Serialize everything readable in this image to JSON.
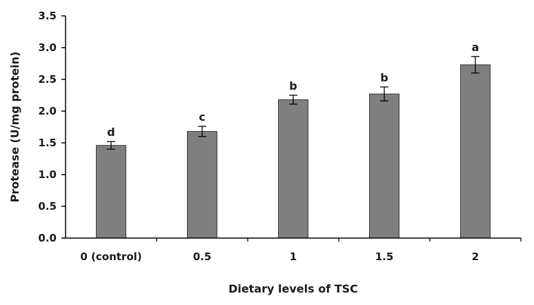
{
  "chart_data": {
    "type": "bar",
    "title": "",
    "xlabel": "Dietary levels of TSC",
    "ylabel": "Protease (U/mg protein)",
    "categories": [
      "0 (control)",
      "0.5",
      "1",
      "1.5",
      "2"
    ],
    "values": [
      1.46,
      1.68,
      2.18,
      2.27,
      2.73
    ],
    "errors": [
      0.06,
      0.08,
      0.07,
      0.11,
      0.13
    ],
    "significance_labels": [
      "d",
      "c",
      "b",
      "b",
      "a"
    ],
    "ylim": [
      0,
      3.5
    ],
    "y_ticks": [
      "0.0",
      "0.5",
      "1.0",
      "1.5",
      "2.0",
      "2.5",
      "3.0",
      "3.5"
    ],
    "grid": false,
    "legend": "none",
    "bar_color": "#7f7f7f"
  }
}
